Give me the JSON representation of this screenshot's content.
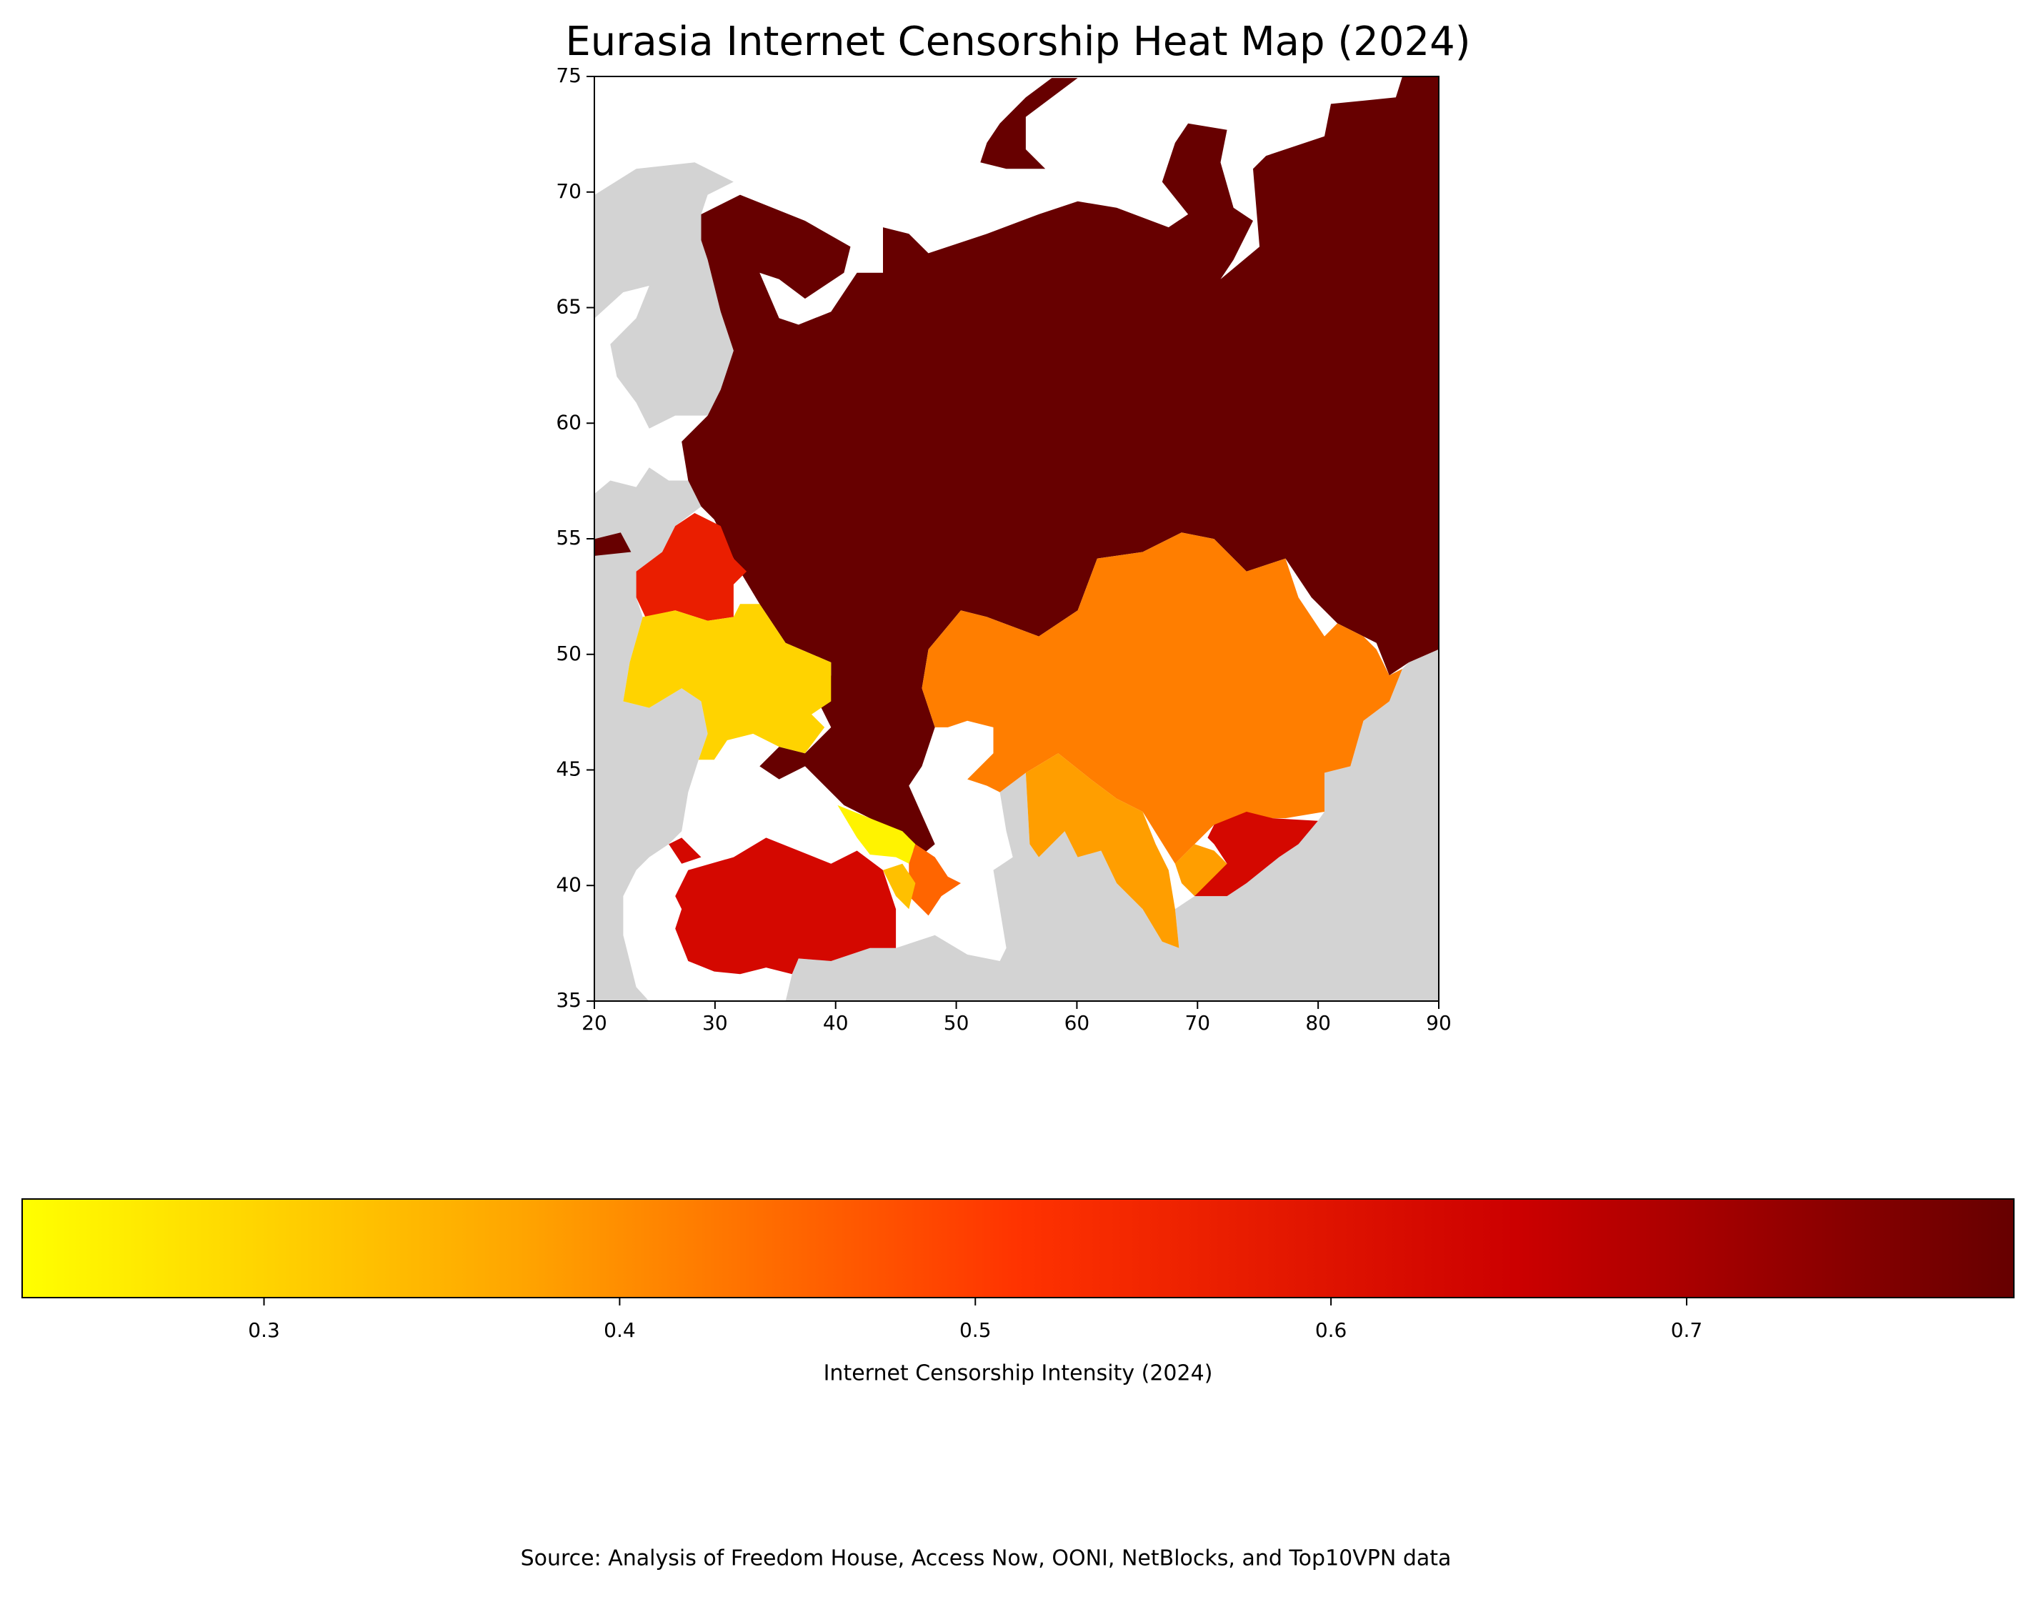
{
  "chart_data": {
    "type": "choropleth",
    "title": "Eurasia Internet Censorship Heat Map (2024)",
    "values": [
      0.79,
      0.42,
      0.57,
      0.3,
      0.63,
      0.25,
      0.45,
      0.38,
      0.63,
      0.38,
      0.33
    ],
    "xlim": [
      20,
      90
    ],
    "ylim": [
      35,
      75
    ],
    "xticks": [
      20,
      30,
      40,
      50,
      60,
      70,
      80,
      90
    ],
    "yticks": [
      35,
      40,
      45,
      50,
      55,
      60,
      65,
      70,
      75
    ],
    "colorscale": [
      "#ffff00",
      "#ffa500",
      "#ff3300",
      "#cc0000",
      "#660000"
    ],
    "no_data_color": "#d3d3d3",
    "colorbar": {
      "label": "Internet Censorship Intensity (2024)",
      "clim": [
        0.232,
        0.792
      ],
      "ticks": [
        0.3,
        0.4,
        0.5,
        0.6,
        0.7
      ]
    },
    "source": "Source: Analysis of Freedom House, Access Now, OONI, NetBlocks, and Top10VPN data"
  }
}
